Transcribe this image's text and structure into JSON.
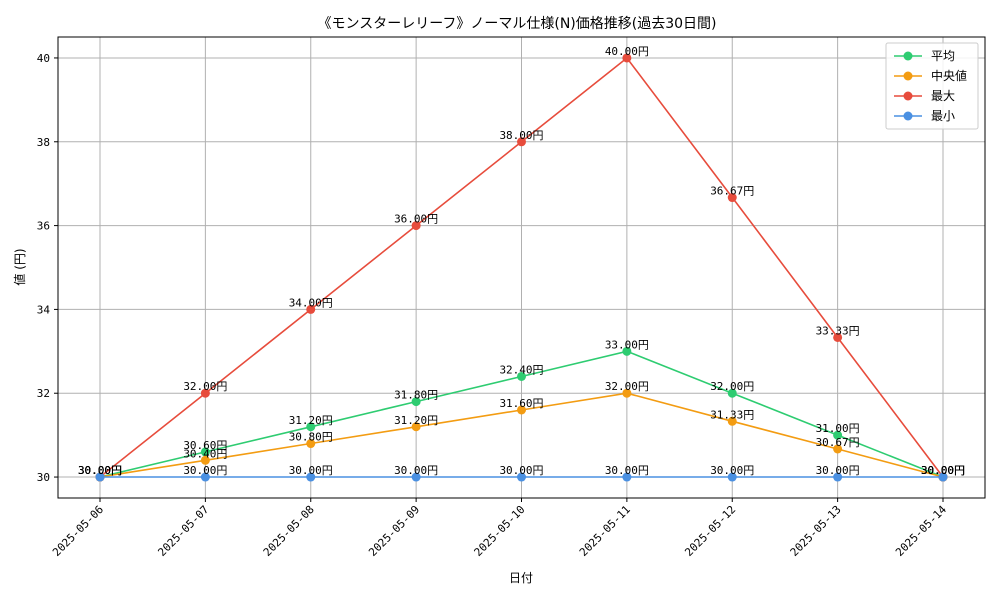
{
  "chart_data": {
    "type": "line",
    "title": "《モンスターレリーフ》ノーマル仕様(N)価格推移(過去30日間)",
    "xlabel": "日付",
    "ylabel": "値 (円)",
    "x": [
      "2025-05-06",
      "2025-05-07",
      "2025-05-08",
      "2025-05-09",
      "2025-05-10",
      "2025-05-11",
      "2025-05-12",
      "2025-05-13",
      "2025-05-14"
    ],
    "ylim": [
      29.5,
      40.5
    ],
    "yticks": [
      30,
      32,
      34,
      36,
      38,
      40
    ],
    "grid": true,
    "legend_position": "top-right",
    "value_suffix": "円",
    "series": [
      {
        "name": "平均",
        "color": "#2ecc71",
        "values": [
          30.0,
          30.6,
          31.2,
          31.8,
          32.4,
          33.0,
          32.0,
          31.0,
          30.0
        ],
        "labels": [
          "30.00円",
          "30.60円",
          "31.20円",
          "31.80円",
          "32.40円",
          "33.00円",
          "32.00円",
          "31.00円",
          "30.00円"
        ]
      },
      {
        "name": "中央値",
        "color": "#f39c12",
        "values": [
          30.0,
          30.4,
          30.8,
          31.2,
          31.6,
          32.0,
          31.33,
          30.67,
          30.0
        ],
        "labels": [
          "30.00円",
          "30.40円",
          "30.80円",
          "31.20円",
          "31.60円",
          "32.00円",
          "31.33円",
          "30.67円",
          "30.00円"
        ]
      },
      {
        "name": "最大",
        "color": "#e74c3c",
        "values": [
          30.0,
          32.0,
          34.0,
          36.0,
          38.0,
          40.0,
          36.67,
          33.33,
          30.0
        ],
        "labels": [
          "30.00円",
          "32.00円",
          "34.00円",
          "36.00円",
          "38.00円",
          "40.00円",
          "36.67円",
          "33.33円",
          "30.00円"
        ]
      },
      {
        "name": "最小",
        "color": "#4a90e2",
        "values": [
          30.0,
          30.0,
          30.0,
          30.0,
          30.0,
          30.0,
          30.0,
          30.0,
          30.0
        ],
        "labels": [
          "30.00円",
          "30.00円",
          "30.00円",
          "30.00円",
          "30.00円",
          "30.00円",
          "30.00円",
          "30.00円",
          "30.00円"
        ]
      }
    ]
  }
}
